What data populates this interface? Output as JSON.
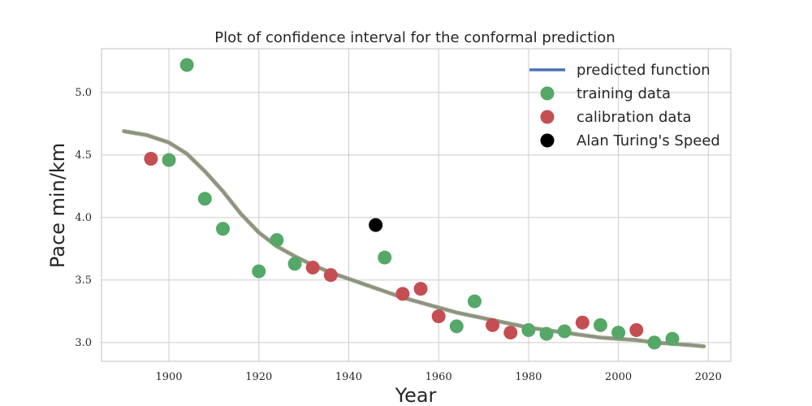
{
  "chart_data": {
    "type": "scatter",
    "title": "Plot of confidence interval for the conformal prediction",
    "xlabel": "Year",
    "ylabel": "Pace min/km",
    "xlim": [
      1885,
      2025
    ],
    "ylim": [
      2.85,
      5.35
    ],
    "xticks": [
      1900,
      1920,
      1940,
      1960,
      1980,
      2000,
      2020
    ],
    "yticks": [
      3.0,
      3.5,
      4.0,
      4.5,
      5.0
    ],
    "grid": true,
    "legend_position": "top-right",
    "series": [
      {
        "name": "predicted function",
        "kind": "line",
        "color": "#4c72b0",
        "x": [
          1890,
          1895,
          1900,
          1904,
          1908,
          1912,
          1916,
          1920,
          1924,
          1928,
          1932,
          1936,
          1940,
          1944,
          1948,
          1952,
          1956,
          1960,
          1964,
          1968,
          1972,
          1976,
          1980,
          1984,
          1988,
          1992,
          1996,
          2000,
          2004,
          2008,
          2012,
          2016,
          2019
        ],
        "y": [
          4.69,
          4.66,
          4.6,
          4.51,
          4.37,
          4.21,
          4.03,
          3.88,
          3.77,
          3.69,
          3.62,
          3.56,
          3.51,
          3.46,
          3.41,
          3.36,
          3.32,
          3.28,
          3.24,
          3.21,
          3.18,
          3.15,
          3.12,
          3.1,
          3.08,
          3.06,
          3.04,
          3.03,
          3.02,
          3.0,
          2.99,
          2.98,
          2.97
        ]
      },
      {
        "name": "training data",
        "kind": "scatter",
        "color": "#55a868",
        "x": [
          1900,
          1904,
          1908,
          1912,
          1920,
          1924,
          1928,
          1948,
          1964,
          1968,
          1980,
          1984,
          1988,
          1996,
          2000,
          2008,
          2012
        ],
        "y": [
          4.46,
          5.22,
          4.15,
          3.91,
          3.57,
          3.82,
          3.63,
          3.68,
          3.13,
          3.33,
          3.1,
          3.07,
          3.09,
          3.14,
          3.08,
          3.0,
          3.03
        ]
      },
      {
        "name": "calibration data",
        "kind": "scatter",
        "color": "#c44e52",
        "x": [
          1896,
          1932,
          1936,
          1952,
          1956,
          1960,
          1972,
          1976,
          1992,
          2004
        ],
        "y": [
          4.47,
          3.6,
          3.54,
          3.39,
          3.43,
          3.21,
          3.14,
          3.08,
          3.16,
          3.1
        ]
      },
      {
        "name": "Alan Turing's Speed",
        "kind": "scatter",
        "color": "#000000",
        "x": [
          1946
        ],
        "y": [
          3.94
        ]
      }
    ]
  }
}
